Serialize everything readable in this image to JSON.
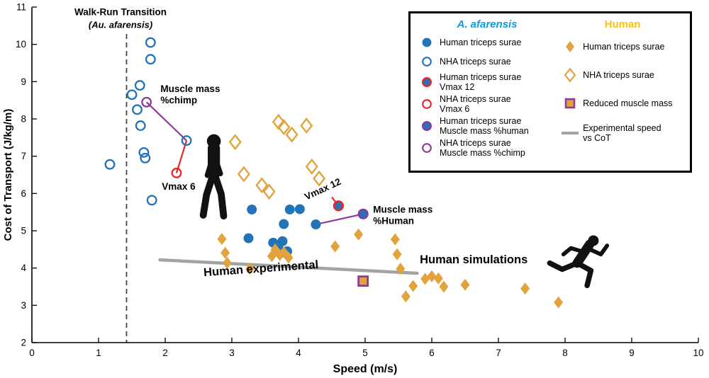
{
  "colors": {
    "blue": "#2273B8",
    "blueText": "#0E9CDC",
    "gold": "#E2A33C",
    "goldText": "#FFC20E",
    "red": "#EB2428",
    "purple": "#8E3A98",
    "gray": "#A3A3A3",
    "grayText": "#999999",
    "dash": "#444444",
    "axis": "#000000"
  },
  "chart_data": {
    "type": "scatter",
    "title": "",
    "xlabel": "Speed (m/s)",
    "ylabel": "Cost of Transport (J/kg/m)",
    "axes": {
      "xlim": [
        0,
        10
      ],
      "ylim": [
        2,
        11
      ],
      "xticks": [
        0,
        1,
        2,
        3,
        4,
        5,
        6,
        7,
        8,
        9,
        10
      ],
      "yticks": [
        2,
        3,
        4,
        5,
        6,
        7,
        8,
        9,
        10,
        11
      ],
      "grid": false
    },
    "walk_run_line_x": 1.42,
    "series": [
      {
        "name": "A. afarensis - Human triceps surae",
        "marker": "circle",
        "points": [
          [
            3.3,
            5.57
          ],
          [
            3.25,
            4.8
          ],
          [
            3.62,
            4.68
          ],
          [
            3.7,
            4.52
          ],
          [
            3.76,
            4.72
          ],
          [
            3.83,
            4.45
          ],
          [
            3.87,
            5.57
          ],
          [
            4.02,
            5.58
          ],
          [
            3.78,
            5.18
          ],
          [
            4.26,
            5.17
          ]
        ]
      },
      {
        "name": "A. afarensis - NHA triceps surae",
        "marker": "circleOpen",
        "points": [
          [
            1.17,
            6.78
          ],
          [
            1.5,
            8.65
          ],
          [
            1.62,
            8.9
          ],
          [
            1.58,
            8.25
          ],
          [
            1.63,
            7.82
          ],
          [
            1.68,
            7.1
          ],
          [
            1.7,
            6.95
          ],
          [
            1.78,
            10.05
          ],
          [
            1.78,
            9.6
          ],
          [
            1.8,
            5.82
          ],
          [
            2.32,
            7.42
          ]
        ]
      },
      {
        "name": "A. afarensis - Human triceps surae Vmax 12",
        "marker": "circleRingRed",
        "points": [
          [
            4.6,
            5.67
          ]
        ]
      },
      {
        "name": "A. afarensis - NHA triceps surae Vmax 6",
        "marker": "circleOpenRed",
        "points": [
          [
            2.17,
            6.55
          ]
        ]
      },
      {
        "name": "A. afarensis - Human triceps surae Muscle mass %human",
        "marker": "circleRingPurple",
        "points": [
          [
            4.97,
            5.45
          ]
        ]
      },
      {
        "name": "A. afarensis - NHA triceps surae Muscle mass %chimp",
        "marker": "circleOpenPurple",
        "points": [
          [
            1.72,
            8.45
          ]
        ]
      },
      {
        "name": "Human - Human triceps surae",
        "marker": "diamond",
        "points": [
          [
            2.85,
            4.78
          ],
          [
            2.9,
            4.41
          ],
          [
            2.93,
            4.14
          ],
          [
            3.27,
            3.98
          ],
          [
            3.6,
            4.32
          ],
          [
            3.65,
            4.5
          ],
          [
            3.72,
            4.35
          ],
          [
            3.78,
            4.42
          ],
          [
            3.85,
            4.28
          ],
          [
            4.55,
            4.58
          ],
          [
            4.9,
            4.9
          ],
          [
            5.45,
            4.77
          ],
          [
            5.48,
            4.37
          ],
          [
            5.53,
            3.98
          ],
          [
            5.61,
            3.24
          ],
          [
            5.72,
            3.52
          ],
          [
            5.9,
            3.71
          ],
          [
            6.0,
            3.78
          ],
          [
            6.1,
            3.72
          ],
          [
            6.18,
            3.5
          ],
          [
            6.5,
            3.55
          ],
          [
            7.4,
            3.45
          ],
          [
            7.9,
            3.08
          ]
        ]
      },
      {
        "name": "Human - NHA triceps surae",
        "marker": "diamondOpen",
        "points": [
          [
            3.05,
            7.38
          ],
          [
            3.18,
            6.52
          ],
          [
            3.45,
            6.22
          ],
          [
            3.56,
            6.05
          ],
          [
            3.7,
            7.92
          ],
          [
            3.78,
            7.78
          ],
          [
            3.9,
            7.58
          ],
          [
            4.12,
            7.82
          ],
          [
            4.2,
            6.72
          ],
          [
            4.31,
            6.4
          ]
        ]
      },
      {
        "name": "Human - Reduced muscle mass",
        "marker": "squarePurple",
        "points": [
          [
            4.97,
            3.65
          ]
        ]
      },
      {
        "name": "Experimental speed vs CoT",
        "marker": "line",
        "color": "gray",
        "points": [
          [
            1.92,
            4.22
          ],
          [
            5.78,
            3.86
          ]
        ]
      }
    ],
    "connectors": [
      {
        "color": "purple",
        "from": [
          1.72,
          8.45
        ],
        "to": [
          2.32,
          7.42
        ]
      },
      {
        "color": "red",
        "from": [
          2.32,
          7.42
        ],
        "to": [
          2.17,
          6.55
        ]
      },
      {
        "color": "purple",
        "from": [
          4.26,
          5.17
        ],
        "to": [
          4.97,
          5.45
        ]
      },
      {
        "color": "red",
        "from": [
          4.5,
          5.9
        ],
        "to": [
          4.6,
          5.67
        ]
      }
    ],
    "annotations": [
      {
        "text": "Walk-Run Transition",
        "x": 1.33,
        "y": 10.78,
        "color": "blueText",
        "size": 13.5,
        "weight": "bold",
        "anchor": "middle"
      },
      {
        "text": "(Au. afarensis)",
        "x": 1.33,
        "y": 10.44,
        "color": "blueText",
        "size": 13,
        "weight": "bold",
        "style": "italic",
        "anchor": "middle"
      },
      {
        "text": "Muscle mass",
        "x": 1.93,
        "y": 8.72,
        "color": "purple",
        "size": 13.5,
        "weight": "bold",
        "anchor": "start"
      },
      {
        "text": "%chimp",
        "x": 1.93,
        "y": 8.42,
        "color": "purple",
        "size": 13.5,
        "weight": "bold",
        "anchor": "start"
      },
      {
        "text": "Vmax 6",
        "x": 1.95,
        "y": 6.1,
        "color": "red",
        "size": 13.5,
        "weight": "bold",
        "anchor": "start"
      },
      {
        "text": "Vmax 12",
        "x": 4.12,
        "y": 5.82,
        "color": "red",
        "size": 13.5,
        "weight": "bold",
        "anchor": "start",
        "rotate": -25
      },
      {
        "text": "Muscle mass",
        "x": 5.12,
        "y": 5.48,
        "color": "purple",
        "size": 13.5,
        "weight": "bold",
        "anchor": "start"
      },
      {
        "text": "%Human",
        "x": 5.12,
        "y": 5.18,
        "color": "purple",
        "size": 13.5,
        "weight": "bold",
        "anchor": "start"
      },
      {
        "text": "Human simulations",
        "x": 5.82,
        "y": 4.13,
        "color": "goldText",
        "size": 16.5,
        "weight": "bold",
        "anchor": "start"
      },
      {
        "text": "Human experimental",
        "x": 2.58,
        "y": 3.78,
        "color": "grayText",
        "size": 16.5,
        "weight": "bold",
        "anchor": "start",
        "rotate": -4
      }
    ],
    "silhouettes": [
      {
        "type": "walking",
        "x": 2.73,
        "y": 6.4
      },
      {
        "type": "running",
        "x": 8.2,
        "y": 4.2
      }
    ],
    "legend": {
      "col1": {
        "header": "A. afarensis",
        "items": [
          {
            "marker": "circle",
            "label": "Human triceps surae"
          },
          {
            "marker": "circleOpen",
            "label": "NHA triceps surae"
          },
          {
            "marker": "circleRingRed",
            "label": "Human triceps surae\nVmax 12"
          },
          {
            "marker": "circleOpenRed",
            "label": "NHA triceps surae\nVmax 6"
          },
          {
            "marker": "circleRingPurple",
            "label": "Human triceps surae\nMuscle mass %human"
          },
          {
            "marker": "circleOpenPurple",
            "label": "NHA triceps surae\nMuscle mass %chimp"
          }
        ]
      },
      "col2": {
        "header": "Human",
        "items": [
          {
            "marker": "diamond",
            "label": "Human triceps surae"
          },
          {
            "marker": "diamondOpen",
            "label": "NHA triceps surae"
          },
          {
            "marker": "squarePurple",
            "label": "Reduced muscle mass"
          },
          {
            "marker": "grayLine",
            "label": "Experimental speed\nvs CoT"
          }
        ]
      }
    }
  }
}
